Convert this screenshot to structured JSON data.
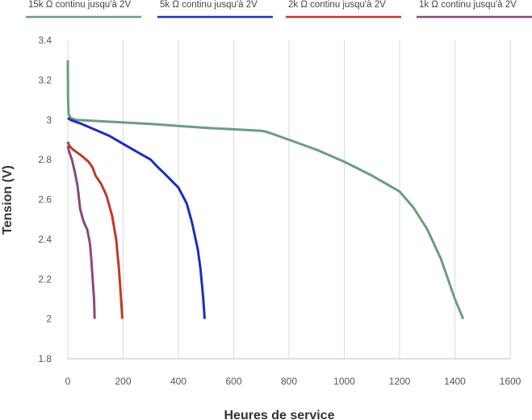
{
  "chart_data": {
    "type": "line",
    "xlabel": "Heures de service",
    "ylabel": "Tension (V)",
    "xlim": [
      0,
      1600
    ],
    "ylim": [
      1.8,
      3.4
    ],
    "x_ticks": [
      0,
      200,
      400,
      600,
      800,
      1000,
      1200,
      1400,
      1600
    ],
    "y_ticks": [
      1.8,
      2,
      2.2,
      2.4,
      2.6,
      2.8,
      3,
      3.2,
      3.4
    ],
    "y_tick_labels": [
      "1.8",
      "2",
      "2.2",
      "2.4",
      "2.6",
      "2.8",
      "3",
      "3.2",
      "3.4"
    ],
    "grid": {
      "vertical": true,
      "horizontal": false
    },
    "legend_position": "top",
    "series": [
      {
        "name": "15k Ω continu jusqu'à 2V",
        "color": "#6a9e7f",
        "x": [
          0,
          1,
          3,
          10,
          30,
          100,
          300,
          500,
          700,
          720,
          800,
          900,
          1000,
          1100,
          1150,
          1200,
          1250,
          1300,
          1350,
          1400,
          1430
        ],
        "y": [
          3.3,
          3.1,
          3.03,
          3.01,
          3.0,
          2.995,
          2.98,
          2.96,
          2.945,
          2.94,
          2.9,
          2.85,
          2.79,
          2.72,
          2.68,
          2.64,
          2.56,
          2.45,
          2.3,
          2.1,
          2.0
        ]
      },
      {
        "name": "5k Ω continu jusqu'à 2V",
        "color": "#1a2fbf",
        "x": [
          0,
          10,
          50,
          100,
          150,
          200,
          250,
          300,
          320,
          350,
          400,
          430,
          450,
          470,
          480,
          490,
          495
        ],
        "y": [
          3.01,
          3.0,
          2.98,
          2.95,
          2.92,
          2.88,
          2.84,
          2.8,
          2.77,
          2.73,
          2.66,
          2.58,
          2.48,
          2.35,
          2.25,
          2.1,
          2.0
        ]
      },
      {
        "name": "2k Ω continu jusqu'à 2V",
        "color": "#c0392b",
        "x": [
          0,
          5,
          20,
          50,
          75,
          90,
          100,
          120,
          140,
          160,
          175,
          185,
          190,
          195,
          197
        ],
        "y": [
          2.89,
          2.87,
          2.85,
          2.82,
          2.79,
          2.76,
          2.72,
          2.68,
          2.62,
          2.52,
          2.4,
          2.25,
          2.15,
          2.05,
          2.0
        ]
      },
      {
        "name": "1k Ω continu jusqu'à 2V",
        "color": "#8a4a76",
        "x": [
          0,
          5,
          15,
          25,
          35,
          45,
          55,
          60,
          70,
          80,
          85,
          90,
          95,
          97
        ],
        "y": [
          2.87,
          2.84,
          2.8,
          2.74,
          2.67,
          2.55,
          2.5,
          2.48,
          2.45,
          2.38,
          2.3,
          2.2,
          2.1,
          2.0
        ]
      }
    ]
  }
}
